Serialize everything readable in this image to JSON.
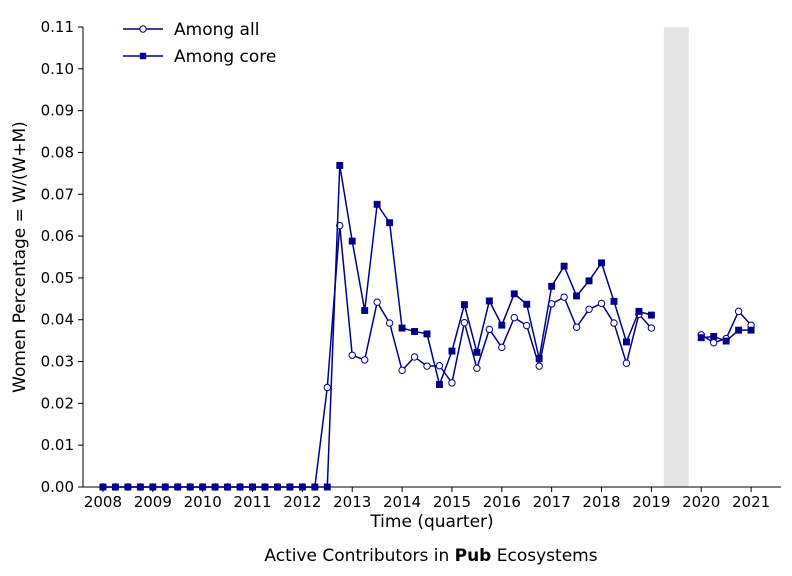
{
  "caption": {
    "prefix": "Active Contributors in ",
    "bold": "Pub",
    "suffix": " Ecosystems"
  },
  "colors": {
    "series": "#00008b",
    "shade": "#e5e5e5",
    "axis": "#000000"
  },
  "chart_data": {
    "type": "line",
    "xlabel": "Time (quarter)",
    "ylabel": "Women Percentage = W/(W+M)",
    "xlim": [
      2007.6,
      2021.6
    ],
    "ylim": [
      0,
      0.11
    ],
    "xticks": [
      2008,
      2009,
      2010,
      2011,
      2012,
      2013,
      2014,
      2015,
      2016,
      2017,
      2018,
      2019,
      2020,
      2021
    ],
    "yticks": [
      "0.00",
      "0.01",
      "0.02",
      "0.03",
      "0.04",
      "0.05",
      "0.06",
      "0.07",
      "0.08",
      "0.09",
      "0.10",
      "0.11"
    ],
    "grid": false,
    "legend_position": "top-left",
    "shaded_region": [
      2019.25,
      2019.75
    ],
    "series": [
      {
        "name": "Among all",
        "marker": "open-circle",
        "x": [
          2008.0,
          2008.25,
          2008.5,
          2008.75,
          2009.0,
          2009.25,
          2009.5,
          2009.75,
          2010.0,
          2010.25,
          2010.5,
          2010.75,
          2011.0,
          2011.25,
          2011.5,
          2011.75,
          2012.0,
          2012.25,
          2012.5,
          2012.75,
          2013.0,
          2013.25,
          2013.5,
          2013.75,
          2014.0,
          2014.25,
          2014.5,
          2014.75,
          2015.0,
          2015.25,
          2015.5,
          2015.75,
          2016.0,
          2016.25,
          2016.5,
          2016.75,
          2017.0,
          2017.25,
          2017.5,
          2017.75,
          2018.0,
          2018.25,
          2018.5,
          2018.75,
          2019.0,
          null,
          2020.0,
          2020.25,
          2020.5,
          2020.75,
          2021.0
        ],
        "y": [
          0,
          0,
          0,
          0,
          0,
          0,
          0,
          0,
          0,
          0,
          0,
          0,
          0,
          0,
          0,
          0,
          0,
          0,
          0.0238,
          0.0625,
          0.0315,
          0.0304,
          0.0442,
          0.0392,
          0.0279,
          0.0311,
          0.0289,
          0.029,
          0.0249,
          0.0393,
          0.0284,
          0.0377,
          0.0334,
          0.0405,
          0.0386,
          0.0289,
          0.0438,
          0.0454,
          0.0382,
          0.0425,
          0.0439,
          0.0392,
          0.0296,
          0.0413,
          0.038,
          null,
          0.0364,
          0.0345,
          0.0355,
          0.042,
          0.0387
        ]
      },
      {
        "name": "Among core",
        "marker": "filled-square",
        "x": [
          2008.0,
          2008.25,
          2008.5,
          2008.75,
          2009.0,
          2009.25,
          2009.5,
          2009.75,
          2010.0,
          2010.25,
          2010.5,
          2010.75,
          2011.0,
          2011.25,
          2011.5,
          2011.75,
          2012.0,
          2012.25,
          2012.5,
          2012.75,
          2013.0,
          2013.25,
          2013.5,
          2013.75,
          2014.0,
          2014.25,
          2014.5,
          2014.75,
          2015.0,
          2015.25,
          2015.5,
          2015.75,
          2016.0,
          2016.25,
          2016.5,
          2016.75,
          2017.0,
          2017.25,
          2017.5,
          2017.75,
          2018.0,
          2018.25,
          2018.5,
          2018.75,
          2019.0,
          null,
          2020.0,
          2020.25,
          2020.5,
          2020.75,
          2021.0
        ],
        "y": [
          0,
          0,
          0,
          0,
          0,
          0,
          0,
          0,
          0,
          0,
          0,
          0,
          0,
          0,
          0,
          0,
          0,
          0,
          0,
          0.0769,
          0.0588,
          0.0422,
          0.0676,
          0.0632,
          0.038,
          0.0372,
          0.0366,
          0.0245,
          0.0325,
          0.0436,
          0.0322,
          0.0445,
          0.0387,
          0.0462,
          0.0437,
          0.0307,
          0.048,
          0.0528,
          0.0457,
          0.0493,
          0.0536,
          0.0444,
          0.0347,
          0.042,
          0.0411,
          null,
          0.0357,
          0.036,
          0.0349,
          0.0375,
          0.0375
        ]
      }
    ]
  }
}
